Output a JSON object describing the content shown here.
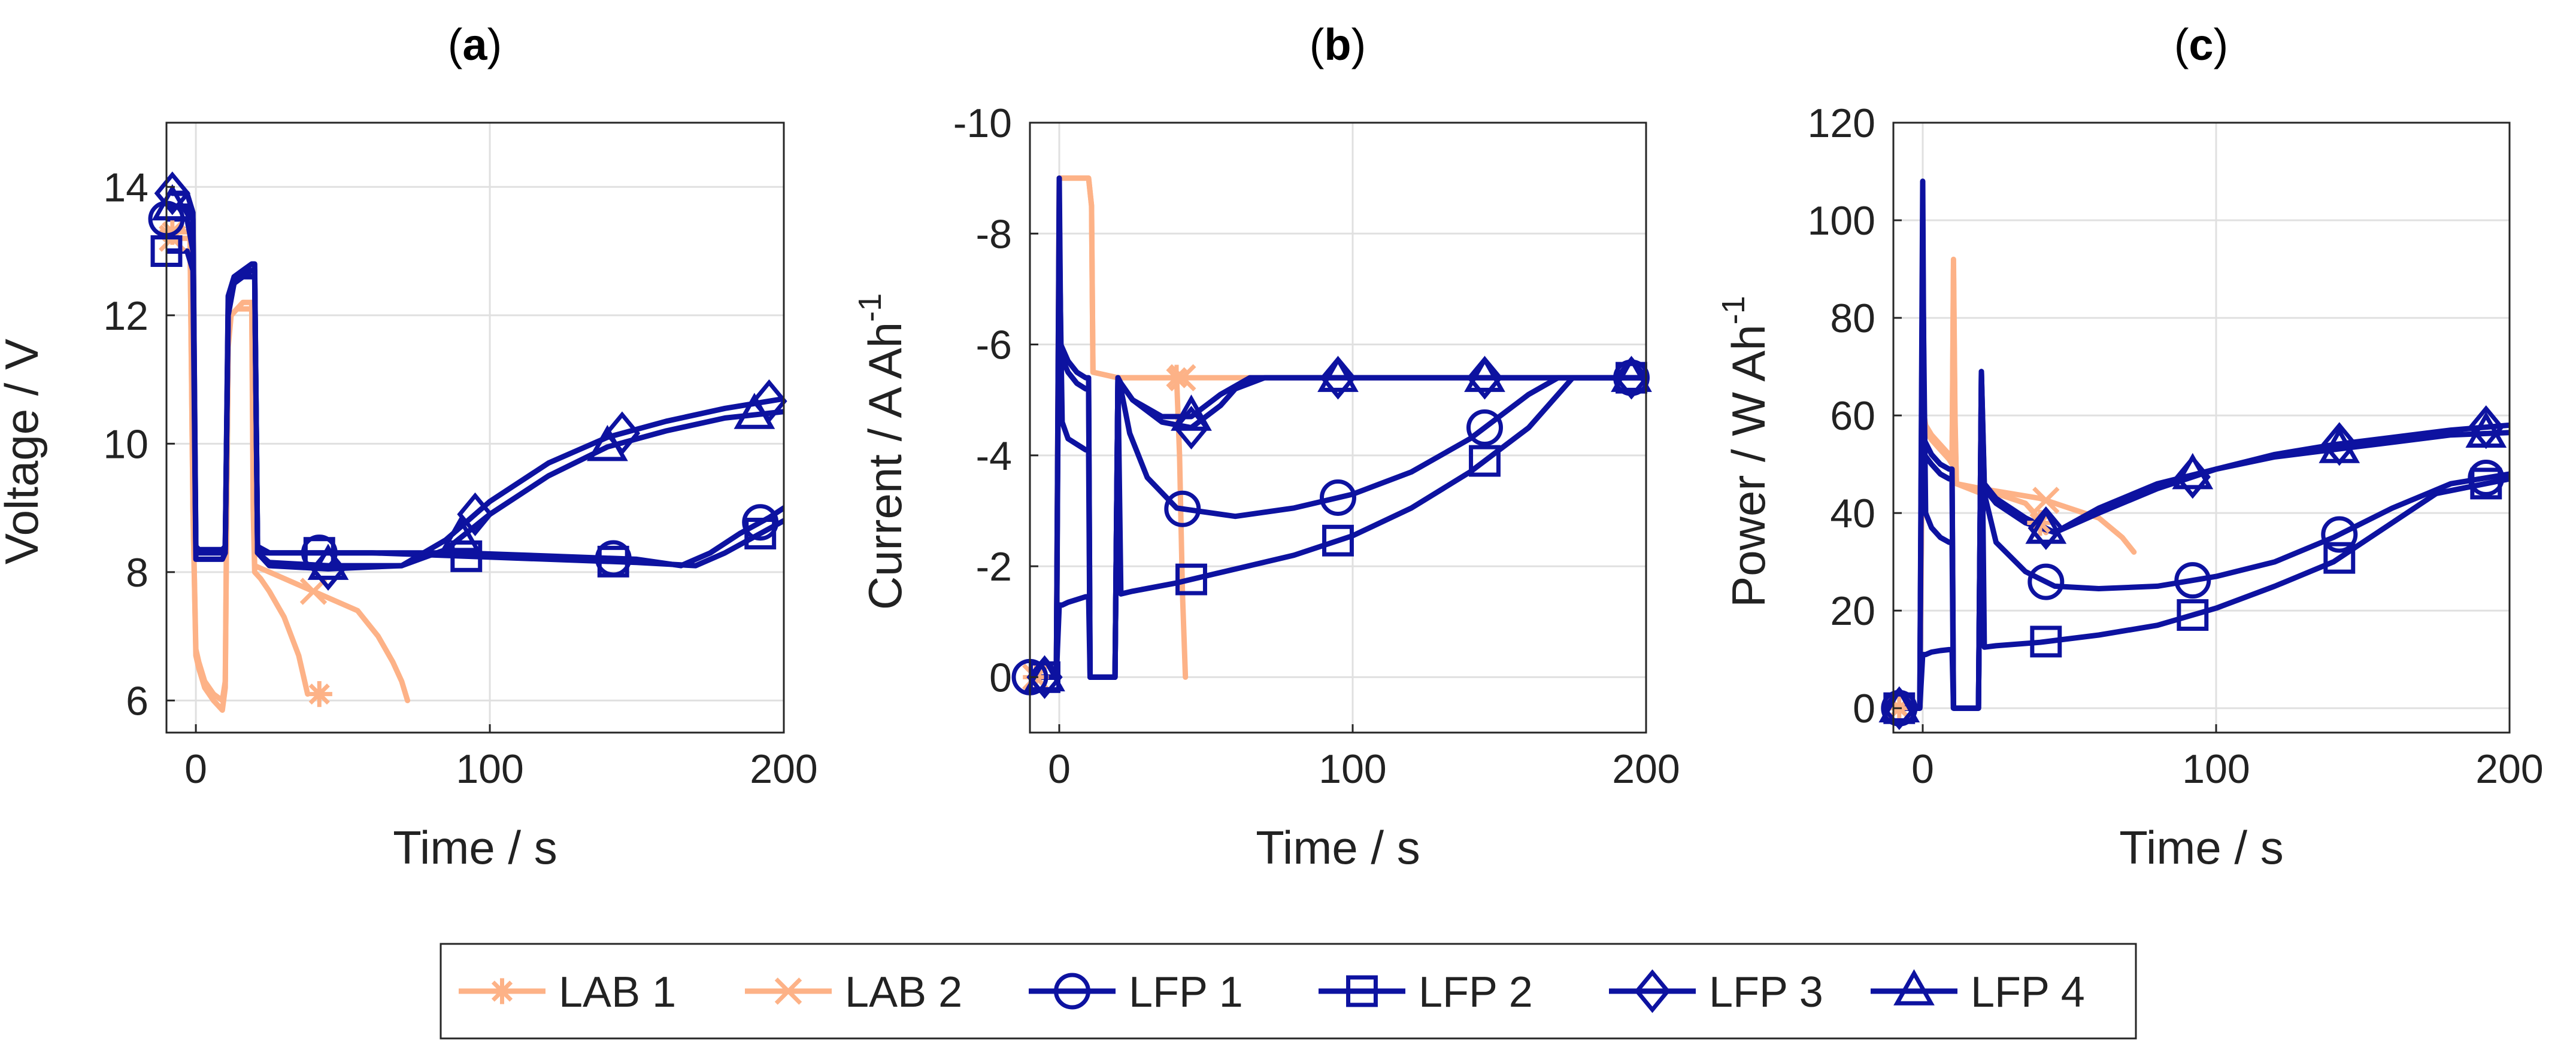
{
  "figure": {
    "series_styles": [
      {
        "name": "LAB 1",
        "color": "#FDB287",
        "marker": "asterisk"
      },
      {
        "name": "LAB 2",
        "color": "#FDB287",
        "marker": "x"
      },
      {
        "name": "LFP 1",
        "color": "#0D12A0",
        "marker": "circle"
      },
      {
        "name": "LFP 2",
        "color": "#0D12A0",
        "marker": "square"
      },
      {
        "name": "LFP 3",
        "color": "#0D12A0",
        "marker": "diamond"
      },
      {
        "name": "LFP 4",
        "color": "#0D12A0",
        "marker": "triangle"
      }
    ],
    "legend": {
      "placement": "bottom-center",
      "entries": [
        "LAB 1",
        "LAB 2",
        "LFP 1",
        "LFP 2",
        "LFP 3",
        "LFP 4"
      ]
    }
  },
  "chart_data": [
    {
      "type": "line",
      "panel": "(a)",
      "panel_letter": "a",
      "title": "",
      "xlabel": "Time / s",
      "ylabel": "Voltage / V",
      "xlim": [
        -10,
        200
      ],
      "ylim": [
        5.5,
        15
      ],
      "xticks": [
        0,
        100,
        200
      ],
      "yticks": [
        6,
        8,
        10,
        12,
        14
      ],
      "reverse_y": false,
      "grid": true,
      "series": [
        {
          "name": "LAB 1",
          "x": [
            -8,
            -2,
            -1,
            0,
            1,
            3,
            6,
            9,
            10,
            11,
            12,
            14,
            16,
            18,
            19,
            19.5,
            20,
            22,
            25,
            30,
            35,
            38
          ],
          "y": [
            13.3,
            13.3,
            9,
            6.8,
            6.6,
            6.3,
            6.1,
            6.0,
            6.3,
            11.5,
            12.0,
            12.1,
            12.1,
            12.1,
            12.1,
            9.0,
            8.0,
            7.9,
            7.7,
            7.3,
            6.7,
            6.1
          ],
          "markers_x": [
            -8,
            42
          ]
        },
        {
          "name": "LAB 2",
          "x": [
            -8,
            -2,
            -1,
            0,
            1,
            3,
            6,
            8,
            9,
            10,
            11,
            12,
            14,
            16,
            18,
            19,
            19.5,
            20,
            25,
            35,
            45,
            55,
            62,
            67,
            70,
            72
          ],
          "y": [
            13.2,
            13.2,
            9,
            6.7,
            6.5,
            6.2,
            6.0,
            5.9,
            5.85,
            6.2,
            11.8,
            12.0,
            12.1,
            12.2,
            12.2,
            12.2,
            9.5,
            8.1,
            8.0,
            7.8,
            7.6,
            7.4,
            7.0,
            6.6,
            6.3,
            6.0
          ],
          "markers_x": [
            -8,
            40
          ]
        },
        {
          "name": "LFP 1",
          "x": [
            -10,
            -3,
            -1,
            0,
            1,
            5,
            9,
            10,
            11,
            13,
            16,
            19,
            20,
            21,
            25,
            40,
            60,
            90,
            120,
            150,
            165,
            175,
            185,
            195,
            200
          ],
          "y": [
            13.5,
            13.5,
            13.0,
            8.3,
            8.3,
            8.3,
            8.3,
            8.4,
            12.0,
            12.5,
            12.6,
            12.7,
            12.7,
            8.4,
            8.3,
            8.3,
            8.3,
            8.3,
            8.25,
            8.2,
            8.1,
            8.3,
            8.6,
            8.85,
            9.0
          ],
          "markers_x": [
            -10,
            42,
            142,
            192
          ]
        },
        {
          "name": "LFP 2",
          "x": [
            -10,
            -3,
            -1,
            0,
            1,
            5,
            9,
            10,
            11,
            13,
            16,
            19,
            20,
            21,
            25,
            40,
            60,
            90,
            120,
            150,
            170,
            180,
            190,
            200
          ],
          "y": [
            13.0,
            13.0,
            12.7,
            8.2,
            8.2,
            8.2,
            8.2,
            8.3,
            12.1,
            12.5,
            12.6,
            12.6,
            12.6,
            8.3,
            8.3,
            8.3,
            8.3,
            8.25,
            8.2,
            8.15,
            8.1,
            8.3,
            8.55,
            8.8
          ],
          "markers_x": [
            -10,
            42,
            92,
            142,
            192
          ]
        },
        {
          "name": "LFP 3",
          "x": [
            -8,
            -3,
            -1,
            0,
            1,
            5,
            9,
            10,
            11,
            13,
            16,
            19,
            20,
            21,
            25,
            45,
            70,
            85,
            100,
            120,
            140,
            160,
            180,
            200
          ],
          "y": [
            13.9,
            13.9,
            13.6,
            8.4,
            8.35,
            8.35,
            8.35,
            8.4,
            12.3,
            12.6,
            12.7,
            12.8,
            12.8,
            8.3,
            8.1,
            8.05,
            8.1,
            8.5,
            9.1,
            9.7,
            10.1,
            10.35,
            10.55,
            10.7
          ],
          "markers_x": [
            -8,
            45,
            95,
            145,
            195
          ]
        },
        {
          "name": "LFP 4",
          "x": [
            -8,
            -3,
            -1,
            0,
            1,
            5,
            9,
            10,
            11,
            13,
            16,
            19,
            20,
            21,
            25,
            45,
            70,
            85,
            100,
            120,
            140,
            160,
            180,
            200
          ],
          "y": [
            13.7,
            13.7,
            13.5,
            8.35,
            8.3,
            8.3,
            8.3,
            8.35,
            12.2,
            12.5,
            12.6,
            12.7,
            12.7,
            8.3,
            8.15,
            8.1,
            8.1,
            8.35,
            8.9,
            9.5,
            9.95,
            10.2,
            10.4,
            10.5
          ],
          "markers_x": [
            -8,
            45,
            90,
            140,
            190
          ]
        }
      ]
    },
    {
      "type": "line",
      "panel": "(b)",
      "panel_letter": "b",
      "title": "",
      "xlabel": "Time / s",
      "ylabel": "Current / A Ah",
      "ylabel_superscript": "-1",
      "xlim": [
        -10,
        200
      ],
      "ylim": [
        1,
        -10
      ],
      "xticks": [
        0,
        100,
        200
      ],
      "yticks": [
        -10,
        -8,
        -6,
        -4,
        -2,
        0
      ],
      "reverse_y": true,
      "grid": true,
      "series": [
        {
          "name": "LAB 1",
          "x": [
            -10,
            -2,
            -1,
            0,
            1,
            4,
            8,
            10,
            11,
            11.5,
            20,
            25,
            30,
            35,
            40,
            41,
            42,
            43
          ],
          "y": [
            0,
            0,
            0,
            -9.0,
            -9.0,
            -9.0,
            -9.0,
            -9.0,
            -8.5,
            -5.5,
            -5.4,
            -5.4,
            -5.4,
            -5.4,
            -5.4,
            -4.0,
            -1.5,
            0
          ],
          "markers_x": [
            -8,
            40
          ]
        },
        {
          "name": "LAB 2",
          "x": [
            -10,
            -2,
            -1,
            0,
            1,
            4,
            8,
            10,
            11,
            11.5,
            20,
            30,
            40,
            50,
            60,
            70,
            80,
            100,
            120,
            140,
            160,
            180,
            200
          ],
          "y": [
            0,
            0,
            0,
            -9.0,
            -9.0,
            -9.0,
            -9.0,
            -9.0,
            -8.5,
            -5.5,
            -5.4,
            -5.4,
            -5.4,
            -5.4,
            -5.4,
            -5.4,
            -5.4,
            -5.4,
            -5.4,
            -5.4,
            -5.4,
            -5.4,
            -5.4
          ],
          "markers_x": [
            -8,
            42
          ]
        },
        {
          "name": "LFP 1",
          "x": [
            -10,
            -2,
            -1,
            0,
            1,
            3,
            6,
            9,
            10,
            10.5,
            18,
            19,
            20,
            21,
            24,
            30,
            40,
            60,
            80,
            100,
            120,
            140,
            160,
            170,
            200
          ],
          "y": [
            0,
            0,
            0,
            -8.0,
            -4.6,
            -4.3,
            -4.2,
            -4.1,
            -4.1,
            0,
            0,
            0,
            -5.4,
            -5.2,
            -4.4,
            -3.6,
            -3.05,
            -2.9,
            -3.05,
            -3.3,
            -3.7,
            -4.3,
            -5.1,
            -5.4,
            -5.4
          ],
          "markers_x": [
            -10,
            42,
            95,
            145,
            195
          ]
        },
        {
          "name": "LFP 2",
          "x": [
            -10,
            -2,
            -1,
            0,
            1,
            3,
            6,
            9,
            10,
            10.5,
            18,
            19,
            20,
            21,
            25,
            40,
            60,
            80,
            100,
            120,
            140,
            160,
            175,
            200
          ],
          "y": [
            0,
            0,
            0,
            -1.3,
            -1.3,
            -1.35,
            -1.4,
            -1.45,
            -1.45,
            0,
            0,
            0,
            -5.4,
            -1.5,
            -1.55,
            -1.7,
            -1.95,
            -2.2,
            -2.55,
            -3.05,
            -3.7,
            -4.5,
            -5.4,
            -5.4
          ],
          "markers_x": [
            -5,
            45,
            95,
            145,
            195
          ]
        },
        {
          "name": "LFP 3",
          "x": [
            -10,
            -2,
            -1,
            0,
            0.5,
            3,
            6,
            9,
            10,
            10.5,
            18,
            19,
            20,
            21,
            25,
            35,
            45,
            55,
            60,
            70,
            100,
            200
          ],
          "y": [
            0,
            0,
            0,
            -9.0,
            -6.0,
            -5.7,
            -5.5,
            -5.4,
            -5.4,
            0,
            0,
            0,
            -5.4,
            -5.3,
            -5.0,
            -4.6,
            -4.5,
            -4.9,
            -5.2,
            -5.4,
            -5.4,
            -5.4
          ],
          "markers_x": [
            -5,
            45,
            95,
            145,
            195
          ]
        },
        {
          "name": "LFP 4",
          "x": [
            -10,
            -2,
            -1,
            0,
            0.5,
            3,
            6,
            9,
            10,
            10.5,
            18,
            19,
            20,
            21,
            25,
            35,
            45,
            55,
            65,
            100,
            200
          ],
          "y": [
            0,
            0,
            0,
            -8.6,
            -5.8,
            -5.5,
            -5.3,
            -5.2,
            -5.2,
            0,
            0,
            0,
            -5.4,
            -5.3,
            -5.0,
            -4.7,
            -4.7,
            -5.1,
            -5.4,
            -5.4,
            -5.4
          ],
          "markers_x": [
            -5,
            45,
            95,
            145,
            195
          ]
        }
      ]
    },
    {
      "type": "line",
      "panel": "(c)",
      "panel_letter": "c",
      "title": "",
      "xlabel": "Time / s",
      "ylabel": "Power / W Ah",
      "ylabel_superscript": "-1",
      "xlim": [
        -10,
        200
      ],
      "ylim": [
        -5,
        120
      ],
      "xticks": [
        0,
        100,
        200
      ],
      "yticks": [
        0,
        20,
        40,
        60,
        80,
        100,
        120
      ],
      "reverse_y": false,
      "grid": true,
      "series": [
        {
          "name": "LAB 1",
          "x": [
            -10,
            -2,
            -1,
            0,
            1,
            3,
            6,
            9,
            10,
            10.5,
            11,
            11.5,
            20,
            25,
            30,
            35,
            38,
            40,
            42
          ],
          "y": [
            0,
            0,
            0,
            62,
            58,
            56,
            54,
            52,
            50,
            92,
            60,
            46,
            44,
            44,
            43,
            42,
            40,
            38,
            36
          ],
          "markers_x": [
            -8,
            40
          ]
        },
        {
          "name": "LAB 2",
          "x": [
            -10,
            -2,
            -1,
            0,
            1,
            3,
            6,
            9,
            10,
            10.5,
            11,
            11.5,
            20,
            30,
            40,
            50,
            60,
            68,
            72
          ],
          "y": [
            0,
            0,
            0,
            60,
            57,
            55,
            53,
            51,
            50,
            90,
            58,
            46,
            45,
            44,
            43,
            41,
            39,
            35,
            32
          ],
          "markers_x": [
            -8,
            42
          ]
        },
        {
          "name": "LFP 1",
          "x": [
            -10,
            -2,
            -1,
            0,
            1,
            3,
            6,
            9,
            10,
            10.5,
            18,
            19,
            20,
            21,
            25,
            35,
            45,
            60,
            80,
            100,
            120,
            140,
            160,
            180,
            200
          ],
          "y": [
            0,
            0,
            0,
            92,
            40,
            37,
            35,
            34,
            34,
            0,
            0,
            0,
            66,
            44,
            34,
            28,
            25,
            24.5,
            25,
            27,
            30,
            35,
            41,
            46,
            48
          ],
          "markers_x": [
            -8,
            42,
            92,
            142,
            192
          ]
        },
        {
          "name": "LFP 2",
          "x": [
            -10,
            -2,
            -1,
            0,
            1,
            3,
            6,
            9,
            10,
            10.5,
            18,
            19,
            20,
            21,
            25,
            40,
            60,
            80,
            100,
            120,
            140,
            160,
            175,
            200
          ],
          "y": [
            0,
            0,
            0,
            11,
            11,
            11.5,
            11.8,
            12,
            12,
            0,
            0,
            0,
            69,
            12.5,
            12.8,
            13.5,
            15,
            17,
            20.5,
            25,
            30,
            38,
            44,
            47
          ],
          "markers_x": [
            -8,
            42,
            92,
            142,
            192
          ]
        },
        {
          "name": "LFP 3",
          "x": [
            -10,
            -2,
            -1,
            0,
            0.5,
            3,
            6,
            9,
            10,
            10.5,
            18,
            19,
            20,
            21,
            25,
            35,
            45,
            60,
            80,
            100,
            120,
            140,
            160,
            180,
            200
          ],
          "y": [
            0,
            0,
            0,
            108,
            55,
            52,
            50,
            49,
            49,
            0,
            0,
            0,
            69,
            46,
            43,
            39,
            36,
            40,
            45,
            49,
            52,
            54,
            55.5,
            57,
            58
          ],
          "markers_x": [
            -8,
            42,
            92,
            142,
            192
          ]
        },
        {
          "name": "LFP 4",
          "x": [
            -10,
            -2,
            -1,
            0,
            0.5,
            3,
            6,
            9,
            10,
            10.5,
            18,
            19,
            20,
            21,
            25,
            35,
            45,
            60,
            80,
            100,
            120,
            140,
            160,
            180,
            200
          ],
          "y": [
            0,
            0,
            0,
            100,
            52,
            50,
            48,
            47,
            47,
            0,
            0,
            0,
            69,
            45,
            42,
            38,
            36,
            41,
            46,
            49,
            51.5,
            53,
            54.5,
            56,
            56.5
          ],
          "markers_x": [
            -8,
            42,
            92,
            142,
            192
          ]
        }
      ]
    }
  ]
}
